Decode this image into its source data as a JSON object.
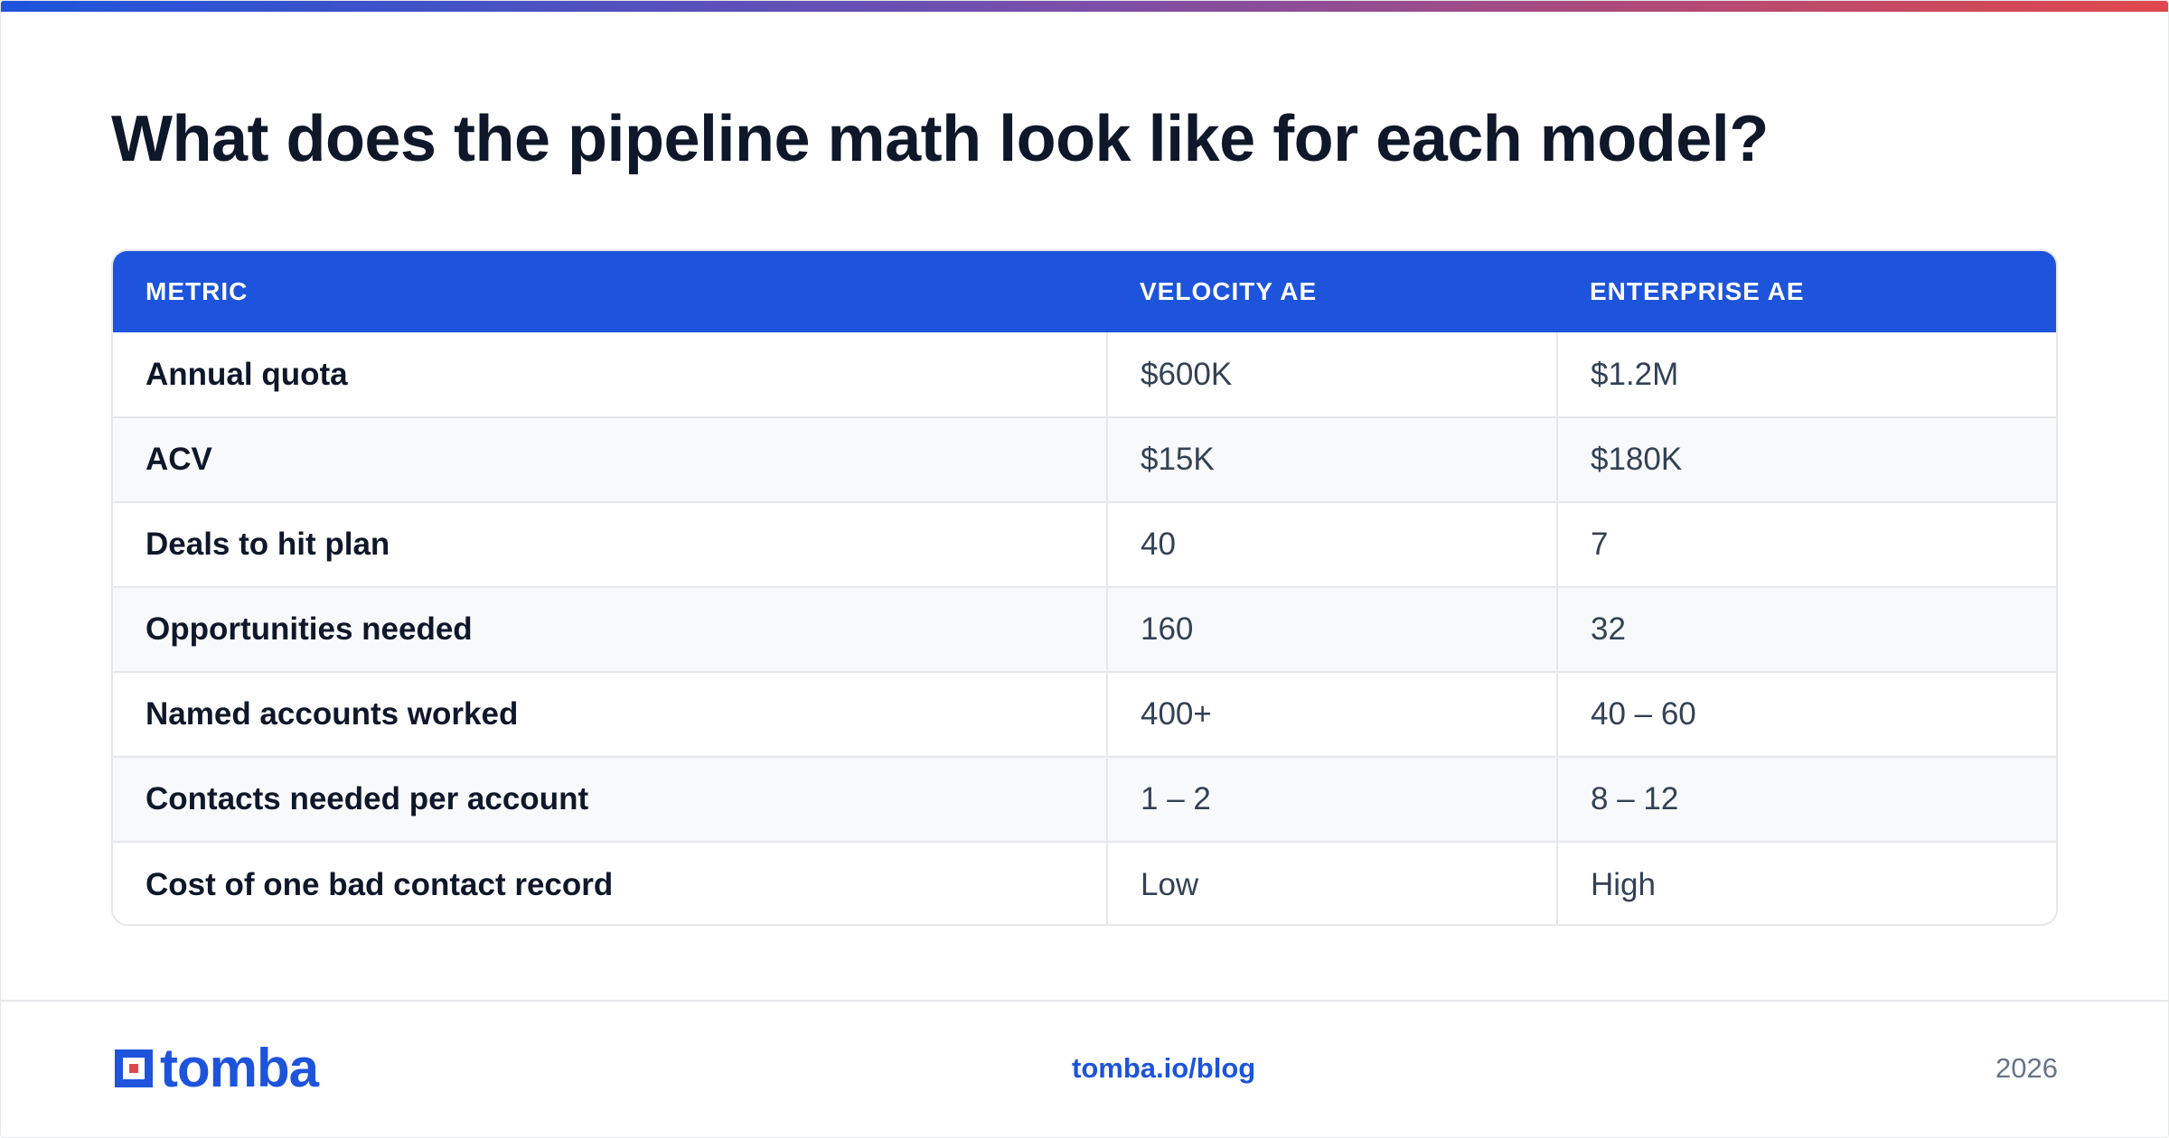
{
  "header": {
    "title": "What does the pipeline math look like for each model?"
  },
  "colors": {
    "accent_blue": "#1d54db",
    "accent_red": "#e0474c",
    "row_alt_bg": "#f8f9fb",
    "border": "#e5e7eb"
  },
  "table": {
    "columns": [
      "METRIC",
      "VELOCITY AE",
      "ENTERPRISE AE"
    ],
    "rows": [
      [
        "Annual quota",
        "$600K",
        "$1.2M"
      ],
      [
        "ACV",
        "$15K",
        "$180K"
      ],
      [
        "Deals to hit plan",
        "40",
        "7"
      ],
      [
        "Opportunities needed",
        "160",
        "32"
      ],
      [
        "Named accounts worked",
        "400+",
        "40 – 60"
      ],
      [
        "Contacts needed per account",
        "1 – 2",
        "8 – 12"
      ],
      [
        "Cost of one bad contact record",
        "Low",
        "High"
      ]
    ]
  },
  "footer": {
    "logo_text": "tomba",
    "logo_icon": "tomba-logo-icon",
    "link": "tomba.io/blog",
    "year": "2026"
  }
}
